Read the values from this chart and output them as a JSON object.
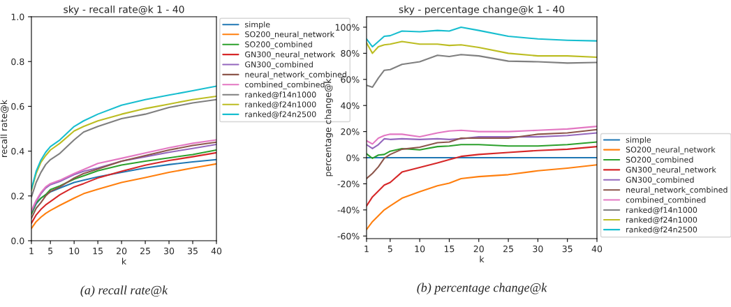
{
  "chart_data": [
    {
      "type": "line",
      "title": "sky - recall rate@k 1 - 40",
      "xlabel": "k",
      "ylabel": "recall rate@k",
      "annotations": [
        "(a) recall rate@k"
      ],
      "xlim": [
        1,
        40
      ],
      "xticks": [
        1,
        5,
        10,
        15,
        20,
        25,
        30,
        35,
        40
      ],
      "ylim": [
        0,
        1
      ],
      "yticks": [
        {
          "value": 0,
          "label": "0.0"
        },
        0.2,
        0.4,
        0.6,
        0.8,
        {
          "value": 1,
          "label": "1.0"
        }
      ],
      "grid": false,
      "legend": "top right",
      "marker": "none",
      "line_style": "solid",
      "x": [
        1,
        2,
        3,
        4,
        5,
        7,
        10,
        12,
        15,
        20,
        25,
        30,
        35,
        40
      ],
      "series": [
        {
          "name": "simple",
          "color": "#1f77b4",
          "values": [
            0.12,
            0.165,
            0.19,
            0.205,
            0.218,
            0.235,
            0.26,
            0.27,
            0.285,
            0.305,
            0.325,
            0.34,
            0.352,
            0.362
          ]
        },
        {
          "name": "SO200_neural_network",
          "color": "#ff7f0e",
          "values": [
            0.055,
            0.085,
            0.105,
            0.122,
            0.135,
            0.158,
            0.19,
            0.21,
            0.23,
            0.26,
            0.282,
            0.305,
            0.325,
            0.343
          ]
        },
        {
          "name": "SO200_combined",
          "color": "#2ca02c",
          "values": [
            0.12,
            0.17,
            0.19,
            0.205,
            0.228,
            0.245,
            0.275,
            0.29,
            0.312,
            0.338,
            0.355,
            0.37,
            0.385,
            0.405
          ]
        },
        {
          "name": "GN300_neural_network",
          "color": "#d62728",
          "values": [
            0.078,
            0.115,
            0.14,
            0.16,
            0.175,
            0.205,
            0.24,
            0.255,
            0.28,
            0.31,
            0.337,
            0.358,
            0.375,
            0.393
          ]
        },
        {
          "name": "GN300_combined",
          "color": "#9467bd",
          "values": [
            0.13,
            0.175,
            0.21,
            0.235,
            0.25,
            0.265,
            0.295,
            0.31,
            0.325,
            0.355,
            0.375,
            0.395,
            0.412,
            0.43
          ]
        },
        {
          "name": "neural_network_combined",
          "color": "#8c564b",
          "values": [
            0.1,
            0.145,
            0.17,
            0.2,
            0.22,
            0.24,
            0.28,
            0.3,
            0.32,
            0.355,
            0.38,
            0.405,
            0.425,
            0.44
          ]
        },
        {
          "name": "combined_combined",
          "color": "#e377c2",
          "values": [
            0.135,
            0.18,
            0.215,
            0.24,
            0.255,
            0.27,
            0.3,
            0.318,
            0.345,
            0.368,
            0.392,
            0.415,
            0.435,
            0.45
          ]
        },
        {
          "name": "ranked@f14n1000",
          "color": "#7f7f7f",
          "values": [
            0.195,
            0.26,
            0.305,
            0.34,
            0.362,
            0.39,
            0.45,
            0.485,
            0.51,
            0.545,
            0.565,
            0.595,
            0.615,
            0.63
          ]
        },
        {
          "name": "ranked@f24n1000",
          "color": "#bcbd22",
          "values": [
            0.225,
            0.3,
            0.35,
            0.38,
            0.405,
            0.435,
            0.49,
            0.51,
            0.535,
            0.565,
            0.59,
            0.61,
            0.63,
            0.645
          ]
        },
        {
          "name": "ranked@f24n2500",
          "color": "#17becf",
          "values": [
            0.23,
            0.31,
            0.36,
            0.395,
            0.42,
            0.45,
            0.51,
            0.535,
            0.565,
            0.605,
            0.63,
            0.65,
            0.67,
            0.69
          ]
        }
      ]
    },
    {
      "type": "line",
      "title": "sky - percentage change@k 1 - 40",
      "xlabel": "k",
      "ylabel": "percentage change@k",
      "annotations": [
        "(b) percentage change@k"
      ],
      "xlim": [
        1,
        40
      ],
      "xticks": [
        1,
        5,
        10,
        15,
        20,
        25,
        30,
        35,
        40
      ],
      "ylim": [
        -62,
        108
      ],
      "yticks": [
        {
          "value": -60,
          "label": "-60%"
        },
        {
          "value": -40,
          "label": "-40%"
        },
        {
          "value": -20,
          "label": "-20%"
        },
        {
          "value": 0,
          "label": "0%"
        },
        {
          "value": 20,
          "label": "20%"
        },
        {
          "value": 40,
          "label": "40%"
        },
        {
          "value": 60,
          "label": "60%"
        },
        {
          "value": 80,
          "label": "80%"
        },
        {
          "value": 100,
          "label": "100%"
        }
      ],
      "grid": false,
      "legend": "bottom right",
      "marker": "none",
      "line_style": "solid",
      "x": [
        1,
        2,
        3,
        4,
        5,
        7,
        10,
        13,
        15,
        17,
        20,
        25,
        30,
        35,
        40
      ],
      "series": [
        {
          "name": "simple",
          "color": "#1f77b4",
          "values": [
            0,
            0,
            0,
            0,
            0,
            0,
            0,
            0,
            0,
            0,
            0,
            0,
            0,
            0,
            0
          ]
        },
        {
          "name": "SO200_neural_network",
          "color": "#ff7f0e",
          "values": [
            -55,
            -49,
            -44.5,
            -40,
            -37,
            -31,
            -26,
            -21.5,
            -19.5,
            -16,
            -14.5,
            -13,
            -10,
            -8,
            -5.5
          ]
        },
        {
          "name": "SO200_combined",
          "color": "#2ca02c",
          "values": [
            3,
            -0.5,
            2,
            2.5,
            5,
            7,
            6,
            8.5,
            9,
            10,
            10,
            9,
            9,
            10,
            12
          ]
        },
        {
          "name": "GN300_neural_network",
          "color": "#d62728",
          "values": [
            -37,
            -30,
            -25.5,
            -21,
            -19,
            -11,
            -7.5,
            -4,
            -1.5,
            1,
            2.5,
            4,
            5.5,
            6.5,
            8.5
          ]
        },
        {
          "name": "GN300_combined",
          "color": "#9467bd",
          "values": [
            10,
            7,
            10,
            14.5,
            14,
            14.5,
            14,
            14.5,
            14,
            14.5,
            16,
            16,
            16,
            17,
            19
          ]
        },
        {
          "name": "neural_network_combined",
          "color": "#8c564b",
          "values": [
            -16,
            -12,
            -7,
            -0.5,
            2.5,
            6.5,
            8,
            11.5,
            12,
            15,
            15,
            15,
            18,
            19,
            21.5
          ]
        },
        {
          "name": "combined_combined",
          "color": "#e377c2",
          "values": [
            13,
            10.5,
            15,
            17,
            18,
            18,
            16,
            19,
            20.5,
            21,
            20,
            20,
            21,
            22,
            24
          ]
        },
        {
          "name": "ranked@f14n1000",
          "color": "#7f7f7f",
          "values": [
            55.5,
            54,
            61,
            67,
            67.5,
            71.5,
            73.5,
            78.5,
            77.5,
            79,
            78,
            74,
            73.5,
            72.5,
            73
          ]
        },
        {
          "name": "ranked@f24n1000",
          "color": "#bcbd22",
          "values": [
            88,
            80,
            85,
            86.5,
            87,
            89,
            87,
            87,
            86,
            86.5,
            84.5,
            80,
            78,
            78,
            77
          ]
        },
        {
          "name": "ranked@f24n2500",
          "color": "#17becf",
          "values": [
            91,
            85,
            89,
            93,
            93.5,
            97,
            96.5,
            97.5,
            97,
            100,
            97.5,
            93,
            91,
            90,
            89.5
          ]
        }
      ]
    }
  ]
}
